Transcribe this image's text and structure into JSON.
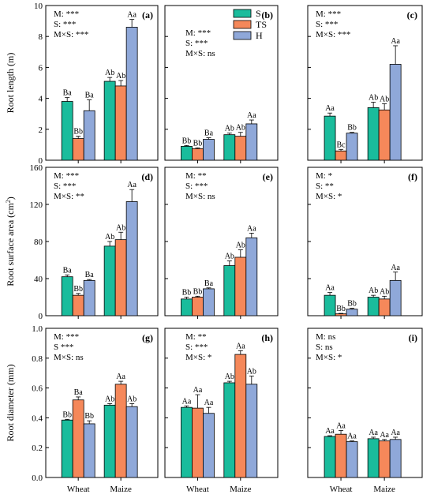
{
  "chart_data": {
    "type": "bar",
    "categories": [
      "Wheat",
      "Maize"
    ],
    "legend": {
      "placement": "top-left of panel (b)",
      "entries": [
        {
          "name": "S",
          "color": "#1abc9c"
        },
        {
          "name": "TS",
          "color": "#f5885a"
        },
        {
          "name": "H",
          "color": "#8fa8d9"
        }
      ]
    },
    "rows": [
      {
        "ylabel": "Root length (m)",
        "ylim": [
          0,
          10
        ],
        "yticks": [
          "0",
          "2",
          "4",
          "6",
          "8",
          "10"
        ],
        "yticks_num": [
          0,
          2,
          4,
          6,
          8,
          10
        ]
      },
      {
        "ylabel": "Root surface area (cm",
        "ylabel_sup": "2",
        "ylabel_end": ")",
        "ylim": [
          0,
          160
        ],
        "yticks": [
          "0",
          "40",
          "80",
          "120",
          "160"
        ],
        "yticks_num": [
          0,
          40,
          80,
          120,
          160
        ]
      },
      {
        "ylabel": "Root diameter (mm)",
        "ylim": [
          0,
          1.0
        ],
        "yticks": [
          "0.0",
          "0.2",
          "0.4",
          "0.6",
          "0.8",
          "1.0"
        ],
        "yticks_num": [
          0,
          0.2,
          0.4,
          0.6,
          0.8,
          1.0
        ]
      }
    ],
    "panels": [
      {
        "label": "(a)",
        "row": 0,
        "col": 0,
        "stats": [
          "M: ***",
          "S: ***",
          "M×S: ***"
        ],
        "values": [
          [
            3.8,
            1.4,
            3.2
          ],
          [
            5.1,
            4.8,
            8.6
          ]
        ],
        "errors": [
          [
            0.25,
            0.15,
            0.7
          ],
          [
            0.25,
            0.35,
            0.5
          ]
        ],
        "letters": [
          [
            "Ba",
            "Bb",
            "Ba"
          ],
          [
            "Ab",
            "Ab",
            "Aa"
          ]
        ]
      },
      {
        "label": "(b)",
        "row": 0,
        "col": 1,
        "stats": [
          "M: ***",
          "S: ***",
          "M×S: ns"
        ],
        "values": [
          [
            0.9,
            0.75,
            1.35
          ],
          [
            1.65,
            1.55,
            2.35
          ]
        ],
        "errors": [
          [
            0.05,
            0.05,
            0.1
          ],
          [
            0.1,
            0.25,
            0.25
          ]
        ],
        "letters": [
          [
            "Bb",
            "Bb",
            "Ba"
          ],
          [
            "Ab",
            "Ab",
            "Aa"
          ]
        ]
      },
      {
        "label": "(c)",
        "row": 0,
        "col": 2,
        "stats": [
          "M: ***",
          "S: ***",
          "M×S: ***"
        ],
        "values": [
          [
            2.85,
            0.6,
            1.75
          ],
          [
            3.4,
            3.25,
            6.2
          ]
        ],
        "errors": [
          [
            0.2,
            0.1,
            0.05
          ],
          [
            0.35,
            0.4,
            1.2
          ]
        ],
        "letters": [
          [
            "Aa",
            "Bc",
            "Bb"
          ],
          [
            "Ab",
            "Ab",
            "Aa"
          ]
        ]
      },
      {
        "label": "(d)",
        "row": 1,
        "col": 0,
        "stats": [
          "M: ***",
          "S: ***",
          "M×S: **"
        ],
        "values": [
          [
            42,
            22,
            38
          ],
          [
            75,
            82,
            123
          ]
        ],
        "errors": [
          [
            2,
            2,
            1
          ],
          [
            5,
            8,
            13
          ]
        ],
        "letters": [
          [
            "Ba",
            "Bb",
            "Ba"
          ],
          [
            "Ab",
            "Ab",
            "Aa"
          ]
        ]
      },
      {
        "label": "(e)",
        "row": 1,
        "col": 1,
        "stats": [
          "M: **",
          "S: ***",
          "M×S: ns"
        ],
        "values": [
          [
            18,
            20,
            29
          ],
          [
            54,
            63,
            84
          ]
        ],
        "errors": [
          [
            2,
            1,
            1
          ],
          [
            5,
            8,
            5
          ]
        ],
        "letters": [
          [
            "Bb",
            "Bb",
            "Ba"
          ],
          [
            "Ab",
            "Ab",
            "Aa"
          ]
        ]
      },
      {
        "label": "(f)",
        "row": 1,
        "col": 2,
        "stats": [
          "M: *",
          "S: **",
          "M×S: *"
        ],
        "values": [
          [
            22,
            2,
            7
          ],
          [
            20,
            18,
            38
          ]
        ],
        "errors": [
          [
            3,
            0.5,
            1
          ],
          [
            2,
            3,
            9
          ]
        ],
        "letters": [
          [
            "Aa",
            "Bb",
            "Bb"
          ],
          [
            "Ab",
            "Ab",
            "Aa"
          ]
        ]
      },
      {
        "label": "(g)",
        "row": 2,
        "col": 0,
        "stats": [
          "M: ***",
          "S ***",
          "M×S: ns"
        ],
        "values": [
          [
            0.385,
            0.52,
            0.36
          ],
          [
            0.485,
            0.625,
            0.475
          ]
        ],
        "errors": [
          [
            0.005,
            0.02,
            0.02
          ],
          [
            0.01,
            0.02,
            0.02
          ]
        ],
        "letters": [
          [
            "Bb",
            "Ba",
            "Bb"
          ],
          [
            "Ab",
            "Aa",
            "Ab"
          ]
        ]
      },
      {
        "label": "(h)",
        "row": 2,
        "col": 1,
        "stats": [
          "M: **",
          "S: ***",
          "M×S: *"
        ],
        "values": [
          [
            0.47,
            0.465,
            0.43
          ],
          [
            0.635,
            0.825,
            0.625
          ]
        ],
        "errors": [
          [
            0.01,
            0.09,
            0.04
          ],
          [
            0.01,
            0.025,
            0.055
          ]
        ],
        "letters": [
          [
            "Aa",
            "Aa",
            "Aa"
          ],
          [
            "Ab",
            "Aa",
            "Ab"
          ]
        ]
      },
      {
        "label": "(i)",
        "row": 2,
        "col": 2,
        "stats": [
          "M: ns",
          "S: ns",
          "M×S: *"
        ],
        "values": [
          [
            0.275,
            0.29,
            0.24
          ],
          [
            0.26,
            0.245,
            0.255
          ]
        ],
        "errors": [
          [
            0.005,
            0.025,
            0.005
          ],
          [
            0.01,
            0.01,
            0.015
          ]
        ],
        "letters": [
          [
            "Aa",
            "Aa",
            "Aa"
          ],
          [
            "Aa",
            "Aa",
            "Aa"
          ]
        ]
      }
    ]
  }
}
